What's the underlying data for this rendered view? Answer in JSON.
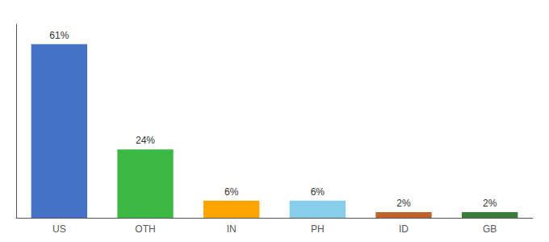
{
  "chart_data": {
    "type": "bar",
    "categories": [
      "US",
      "OTH",
      "IN",
      "PH",
      "ID",
      "GB"
    ],
    "values": [
      61,
      24,
      6,
      6,
      2,
      2
    ],
    "value_labels": [
      "61%",
      "24%",
      "6%",
      "6%",
      "2%",
      "2%"
    ],
    "colors": [
      "#4472C4",
      "#3CB943",
      "#FFA500",
      "#87CEEB",
      "#C0622B",
      "#3A7D34"
    ],
    "ylim": [
      0,
      68
    ],
    "grid": false,
    "data_labels": true,
    "tick_labels": "x"
  }
}
